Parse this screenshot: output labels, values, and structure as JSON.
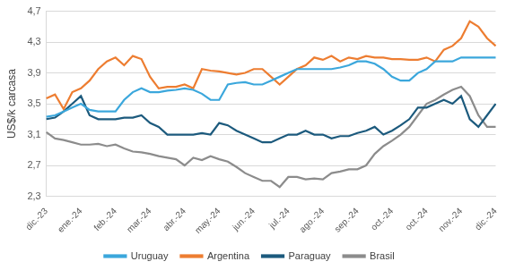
{
  "chart_data": {
    "type": "line",
    "y_label": "US$/k carcasa",
    "categories": [
      "dic.-23",
      null,
      null,
      null,
      "ene.-24",
      null,
      null,
      null,
      "feb.-24",
      null,
      null,
      null,
      "mar.-24",
      null,
      null,
      null,
      "abr.-24",
      null,
      null,
      null,
      "may.-24",
      null,
      null,
      null,
      "jun.-24",
      null,
      null,
      null,
      "jul.-24",
      null,
      null,
      null,
      "ago.-24",
      null,
      null,
      null,
      "sep.-24",
      null,
      null,
      null,
      "oct.-24",
      null,
      null,
      null,
      "oct.-24",
      null,
      null,
      null,
      "nov.-24",
      null,
      null,
      null,
      "dic.-24"
    ],
    "series": [
      {
        "name": "Uruguay",
        "color": "#3ba7dc",
        "values": [
          3.33,
          3.35,
          3.4,
          3.45,
          3.5,
          3.42,
          3.4,
          3.4,
          3.4,
          3.55,
          3.65,
          3.7,
          3.65,
          3.65,
          3.67,
          3.68,
          3.7,
          3.68,
          3.63,
          3.55,
          3.55,
          3.75,
          3.77,
          3.78,
          3.75,
          3.75,
          3.8,
          3.85,
          3.9,
          3.95,
          3.95,
          3.95,
          3.95,
          3.95,
          3.97,
          4.0,
          4.05,
          4.05,
          4.02,
          3.95,
          3.85,
          3.8,
          3.8,
          3.9,
          3.95,
          4.05,
          4.05,
          4.05,
          4.1,
          4.1,
          4.1,
          4.1,
          4.1
        ]
      },
      {
        "name": "Argentina",
        "color": "#ed7d31",
        "values": [
          3.57,
          3.62,
          3.43,
          3.65,
          3.7,
          3.8,
          3.95,
          4.05,
          4.1,
          4.0,
          4.12,
          4.08,
          3.85,
          3.7,
          3.72,
          3.72,
          3.75,
          3.7,
          3.95,
          3.93,
          3.92,
          3.9,
          3.88,
          3.9,
          3.95,
          3.95,
          3.85,
          3.75,
          3.85,
          3.95,
          4.0,
          4.1,
          4.07,
          4.12,
          4.05,
          4.1,
          4.08,
          4.12,
          4.1,
          4.1,
          4.08,
          4.08,
          4.07,
          4.07,
          4.1,
          4.05,
          4.2,
          4.25,
          4.35,
          4.57,
          4.5,
          4.35,
          4.25
        ]
      },
      {
        "name": "Paraguay",
        "color": "#1c5a7d",
        "values": [
          3.3,
          3.32,
          3.4,
          3.5,
          3.6,
          3.35,
          3.3,
          3.3,
          3.3,
          3.32,
          3.32,
          3.35,
          3.25,
          3.2,
          3.1,
          3.1,
          3.1,
          3.1,
          3.12,
          3.1,
          3.25,
          3.22,
          3.15,
          3.1,
          3.05,
          3.0,
          3.0,
          3.05,
          3.1,
          3.1,
          3.15,
          3.1,
          3.1,
          3.05,
          3.08,
          3.08,
          3.12,
          3.15,
          3.2,
          3.1,
          3.15,
          3.22,
          3.3,
          3.45,
          3.45,
          3.5,
          3.55,
          3.5,
          3.6,
          3.3,
          3.2,
          3.35,
          3.5
        ]
      },
      {
        "name": "Brasil",
        "color": "#8c8c8c",
        "values": [
          3.13,
          3.05,
          3.03,
          3.0,
          2.97,
          2.97,
          2.98,
          2.95,
          2.97,
          2.92,
          2.88,
          2.87,
          2.85,
          2.82,
          2.8,
          2.78,
          2.7,
          2.8,
          2.77,
          2.82,
          2.78,
          2.75,
          2.68,
          2.6,
          2.55,
          2.5,
          2.5,
          2.42,
          2.55,
          2.55,
          2.52,
          2.53,
          2.52,
          2.6,
          2.62,
          2.65,
          2.65,
          2.7,
          2.85,
          2.95,
          3.02,
          3.1,
          3.2,
          3.35,
          3.5,
          3.55,
          3.62,
          3.68,
          3.72,
          3.6,
          3.35,
          3.2,
          3.2
        ]
      }
    ],
    "ylim": [
      2.3,
      4.7
    ],
    "yticks": [
      {
        "value": 2.3,
        "label": "2,3"
      },
      {
        "value": 2.7,
        "label": "2,7"
      },
      {
        "value": 3.1,
        "label": "3,1"
      },
      {
        "value": 3.5,
        "label": "3,5"
      },
      {
        "value": 3.9,
        "label": "3,9"
      },
      {
        "value": 4.3,
        "label": "4,3"
      },
      {
        "value": 4.7,
        "label": "4,7"
      }
    ],
    "grid": true,
    "legend": "bottom"
  }
}
